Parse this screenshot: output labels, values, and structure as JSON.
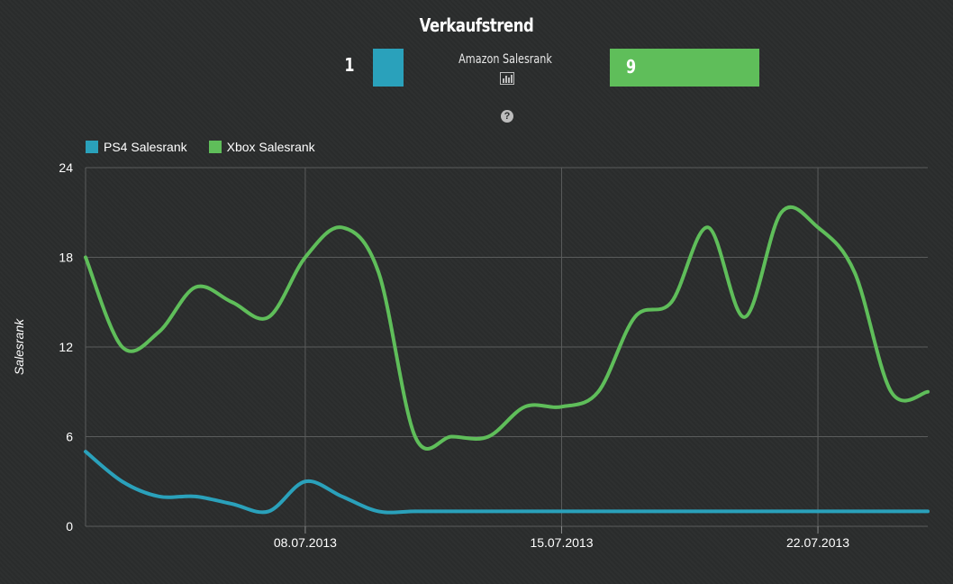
{
  "header": {
    "title": "Verkaufstrend",
    "left_value": "1",
    "center_label": "Amazon Salesrank",
    "right_value": "9",
    "left_color": "#2aa1bb",
    "right_color": "#5fbe5a",
    "stats_icon": "bar-chart-icon",
    "help_icon": "question-circle-icon"
  },
  "chart_data": {
    "type": "line",
    "ylabel": "Salesrank",
    "xlabel": "",
    "ylim": [
      0,
      24
    ],
    "yticks": [
      "0",
      "6",
      "12",
      "18",
      "24"
    ],
    "xticks": [
      {
        "label": "08.07.2013",
        "x": 7
      },
      {
        "label": "15.07.2013",
        "x": 14
      },
      {
        "label": "22.07.2013",
        "x": 21
      }
    ],
    "xlim": [
      1,
      24
    ],
    "grid": true,
    "legend_position": "top-left",
    "series": [
      {
        "name": "PS4 Salesrank",
        "color": "#2aa1bb",
        "x": [
          1,
          2,
          3,
          4,
          5,
          6,
          7,
          8,
          9,
          10,
          11,
          12,
          13,
          14,
          15,
          16,
          17,
          18,
          19,
          20,
          21,
          22,
          23,
          24
        ],
        "values": [
          5,
          3,
          2,
          2,
          1.5,
          1,
          3,
          2,
          1,
          1,
          1,
          1,
          1,
          1,
          1,
          1,
          1,
          1,
          1,
          1,
          1,
          1,
          1,
          1
        ]
      },
      {
        "name": "Xbox Salesrank",
        "color": "#5fbe5a",
        "x": [
          1,
          2,
          3,
          4,
          5,
          6,
          7,
          8,
          9,
          10,
          11,
          12,
          13,
          14,
          15,
          16,
          17,
          18,
          19,
          20,
          21,
          22,
          23,
          24
        ],
        "values": [
          18,
          12,
          13,
          16,
          15,
          14,
          18,
          20,
          17,
          6,
          6,
          6,
          8,
          8,
          9,
          14,
          15,
          20,
          14,
          21,
          20,
          17,
          9,
          9
        ]
      }
    ]
  }
}
